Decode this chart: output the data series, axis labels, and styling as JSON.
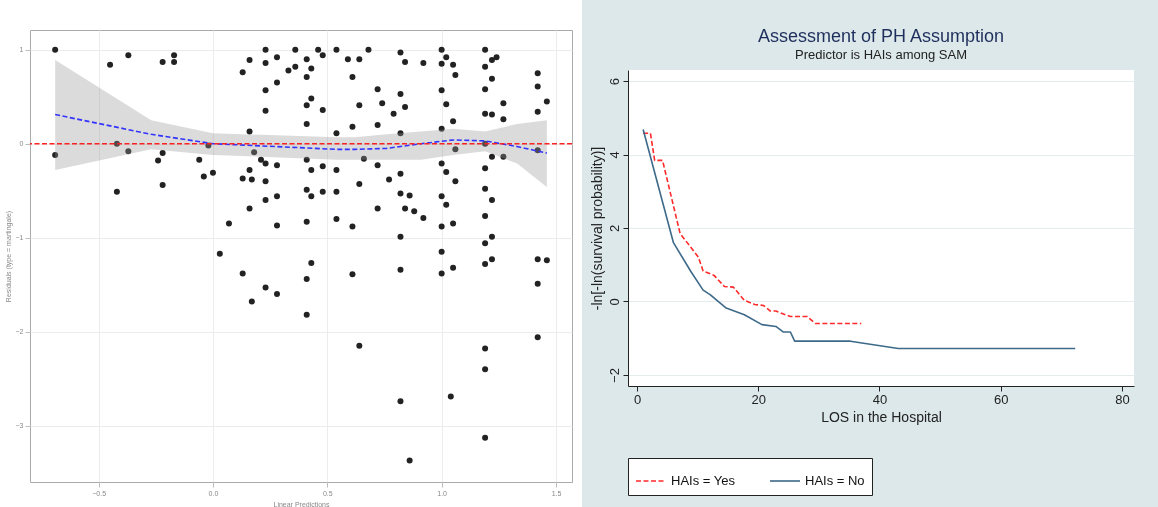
{
  "chart_data": [
    {
      "type": "scatter",
      "xlabel": "Linear Predictions",
      "ylabel": "Residuals (type = martingale)",
      "xlim": [
        -0.8,
        1.57
      ],
      "ylim": [
        -3.6,
        1.21
      ],
      "xticks": [
        -0.5,
        {
          "value": 0,
          "label": "0.0"
        },
        0.5,
        {
          "value": 1,
          "label": "1.0"
        },
        1.5
      ],
      "yticks": [
        -3,
        -2,
        -1,
        0,
        1
      ],
      "grid": true,
      "legend": false,
      "ref_lines": [
        {
          "axis": "y",
          "value": 0,
          "color": "#ff2222",
          "line_style": "dashed"
        }
      ],
      "series": [
        {
          "type": "scatter",
          "color": "#222222",
          "marker": "circle",
          "x": [
            -0.69,
            -0.69,
            -0.45,
            -0.37,
            -0.42,
            -0.42,
            -0.37,
            -0.22,
            -0.17,
            -0.17,
            -0.22,
            -0.22,
            -0.24,
            -0.06,
            -0.04,
            0,
            -0.02,
            0.07,
            0.03,
            0.13,
            0.13,
            0.13,
            0.16,
            0.16,
            0.16,
            0.16,
            0.17,
            0.17,
            0.18,
            0.21,
            0.23,
            0.23,
            0.23,
            0.23,
            0.23,
            0.23,
            0.23,
            0.23,
            0.28,
            0.28,
            0.28,
            0.28,
            0.28,
            0.28,
            0.33,
            0.36,
            0.36,
            0.41,
            0.41,
            0.41,
            0.41,
            0.41,
            0.41,
            0.41,
            0.41,
            0.41,
            0.43,
            0.43,
            0.43,
            0.43,
            0.43,
            0.46,
            0.48,
            0.48,
            0.48,
            0.48,
            0.54,
            0.54,
            0.54,
            0.54,
            0.54,
            0.59,
            0.61,
            0.61,
            0.61,
            0.61,
            0.64,
            0.64,
            0.64,
            0.64,
            0.66,
            0.68,
            0.72,
            0.72,
            0.72,
            0.72,
            0.74,
            0.77,
            0.79,
            0.82,
            0.82,
            0.82,
            0.82,
            0.82,
            0.82,
            0.82,
            0.82,
            0.84,
            0.84,
            0.84,
            0.86,
            0.86,
            0.88,
            0.92,
            0.92,
            1.0,
            1.0,
            1.0,
            1.0,
            1.0,
            1.0,
            1.0,
            1.0,
            1.0,
            1.02,
            1.02,
            1.02,
            1.02,
            1.04,
            1.05,
            1.05,
            1.05,
            1.05,
            1.06,
            1.06,
            1.06,
            1.19,
            1.19,
            1.19,
            1.19,
            1.19,
            1.19,
            1.19,
            1.19,
            1.19,
            1.19,
            1.19,
            1.19,
            1.19,
            1.22,
            1.22,
            1.22,
            1.22,
            1.22,
            1.22,
            1.22,
            1.24,
            1.27,
            1.27,
            1.27,
            1.42,
            1.42,
            1.42,
            1.42,
            1.42,
            1.42,
            1.42,
            1.46,
            1.46
          ],
          "values": [
            1.0,
            -0.12,
            0.84,
            0.94,
            0,
            -0.51,
            -0.08,
            0.87,
            0.94,
            0.87,
            -0.1,
            -0.44,
            -0.18,
            -0.17,
            -0.35,
            -0.31,
            -0.02,
            -0.85,
            -1.17,
            0.76,
            -0.37,
            -1.38,
            0.89,
            0.13,
            -0.28,
            -0.69,
            -1.68,
            -0.38,
            -0.09,
            -0.17,
            1.0,
            0.86,
            0.57,
            0.35,
            -0.21,
            -0.4,
            -0.6,
            -1.53,
            0.92,
            0.65,
            -0.23,
            -0.56,
            -0.87,
            -1.6,
            0.78,
            1.0,
            0.82,
            0.9,
            0.71,
            0.41,
            0.21,
            -0.17,
            -0.49,
            -0.83,
            -1.44,
            -1.82,
            0.8,
            0.48,
            -0.28,
            -0.56,
            -1.27,
            1.0,
            0.94,
            0.36,
            -0.24,
            -0.51,
            1.0,
            0.11,
            -0.28,
            -0.51,
            -0.8,
            0.9,
            0.71,
            0.18,
            -0.88,
            -1.39,
            0.9,
            0.41,
            -0.43,
            -2.15,
            -0.16,
            1.0,
            0.58,
            0.2,
            -0.23,
            -0.69,
            0.43,
            -0.38,
            0.32,
            0.97,
            0.53,
            0.11,
            -0.32,
            -0.53,
            -0.99,
            -1.34,
            -2.74,
            0.87,
            0.39,
            -0.69,
            -3.37,
            -0.55,
            -0.72,
            0.86,
            -0.79,
            1.0,
            0.85,
            0.57,
            0.16,
            -0.21,
            -0.56,
            -0.88,
            -1.15,
            -1.38,
            0.92,
            0.42,
            -0.3,
            -0.65,
            -2.69,
            0.84,
            0.24,
            -0.85,
            -1.32,
            0.73,
            -0.06,
            -0.4,
            1.0,
            0.82,
            0.58,
            0.32,
            0.0,
            -0.26,
            -0.48,
            -0.77,
            -1.06,
            -1.28,
            -2.18,
            -2.4,
            -3.13,
            0.89,
            0.69,
            0.31,
            -0.14,
            -0.6,
            -0.99,
            -1.23,
            0.92,
            0.43,
            0.26,
            -0.14,
            0.75,
            0.61,
            0.34,
            -0.07,
            -1.23,
            -1.49,
            -2.06,
            0.45,
            -1.24
          ]
        },
        {
          "type": "line",
          "color": "#3333ff",
          "line_style": "dashed",
          "x": [
            -0.69,
            -0.27,
            0.0,
            0.54,
            0.62,
            0.76,
            0.91,
            1.05,
            1.19,
            1.33,
            1.46
          ],
          "values": [
            0.31,
            0.1,
            0,
            -0.06,
            -0.06,
            -0.05,
            0,
            0.04,
            0.03,
            -0.03,
            -0.1
          ],
          "lower": [
            -0.28,
            -0.06,
            -0.12,
            -0.17,
            -0.17,
            -0.17,
            -0.17,
            -0.12,
            -0.08,
            -0.21,
            -0.46
          ],
          "upper": [
            0.89,
            0.25,
            0.11,
            0.07,
            0.07,
            0.1,
            0.13,
            0.16,
            0.13,
            0.21,
            0.25
          ]
        }
      ]
    },
    {
      "type": "line",
      "title": "Assessment of PH Assumption",
      "subtitle": "Predictor is HAIs among SAM",
      "xlabel": "LOS in the Hospital",
      "ylabel": "-ln[-ln(survival probability)]",
      "xlim": [
        -1.5,
        82
      ],
      "ylim": [
        -2.3,
        6.3
      ],
      "xticks": [
        0,
        20,
        40,
        60,
        80
      ],
      "yticks": [
        -2,
        0,
        2,
        4,
        6
      ],
      "grid": "y",
      "legend": "bottom",
      "series": [
        {
          "name": "HAIs = Yes",
          "color": "#ff2a2a",
          "line_style": "dashed",
          "x": [
            1.0,
            2.2,
            2.9,
            4.2,
            7.1,
            10.1,
            10.9,
            12.7,
            14.4,
            15.9,
            17.7,
            19.4,
            20.9,
            22.0,
            22.9,
            25.3,
            28.1,
            29.4,
            37.0
          ],
          "values": [
            4.58,
            4.58,
            3.84,
            3.84,
            1.85,
            1.21,
            0.83,
            0.71,
            0.41,
            0.39,
            0.03,
            -0.08,
            -0.11,
            -0.26,
            -0.26,
            -0.41,
            -0.41,
            -0.6,
            -0.6
          ]
        },
        {
          "name": "HAIs = No",
          "color": "#3e6a8a",
          "line_style": "solid",
          "x": [
            1.0,
            6.0,
            8.9,
            10.9,
            12.1,
            14.7,
            17.7,
            20.6,
            22.9,
            24.1,
            25.3,
            26.0,
            35.2,
            43.1,
            72.3
          ],
          "values": [
            4.68,
            1.6,
            0.81,
            0.31,
            0.18,
            -0.18,
            -0.36,
            -0.63,
            -0.68,
            -0.83,
            -0.83,
            -1.08,
            -1.08,
            -1.28,
            -1.28
          ]
        }
      ]
    }
  ]
}
